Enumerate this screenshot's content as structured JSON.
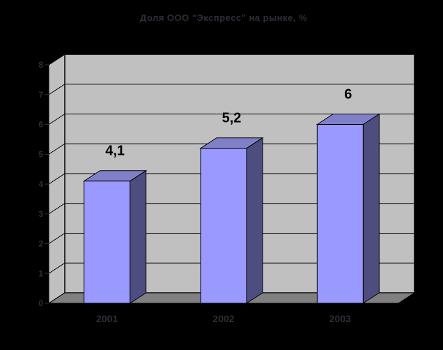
{
  "chart_data": {
    "type": "bar",
    "style": "3d-column",
    "title": "Доля ООО \"Экспресс\" на рынке, %",
    "categories": [
      "2001",
      "2002",
      "2003"
    ],
    "values": [
      4.1,
      5.2,
      6
    ],
    "value_labels": [
      "4,1",
      "5,2",
      "6"
    ],
    "xlabel": "",
    "ylabel": "",
    "ylim": [
      0,
      8
    ],
    "yticks": [
      0,
      1,
      2,
      3,
      4,
      5,
      6,
      7,
      8
    ],
    "grid": true,
    "legend": "none",
    "colors": {
      "background": "#000000",
      "wall": "#C0C0C0",
      "floor": "#808080",
      "gridline": "#000000",
      "bar_front": "#9999FF",
      "bar_top": "#8080C8",
      "bar_side": "#4D4D80",
      "bar_outline": "#000000",
      "axis_text": "#2E2E38",
      "data_label": "#000000"
    }
  }
}
